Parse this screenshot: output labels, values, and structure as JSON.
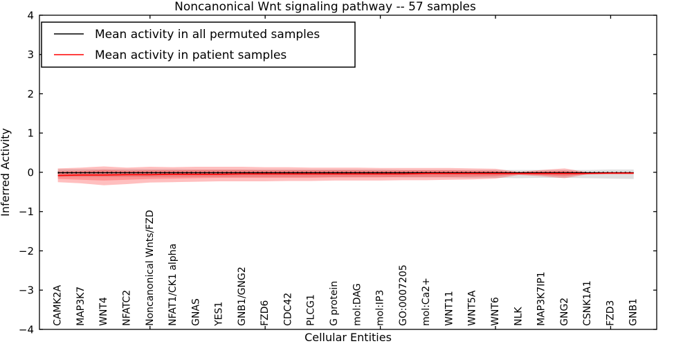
{
  "figure": {
    "title": "Noncanonical Wnt signaling pathway -- 57 samples",
    "xlabel": "Cellular Entities",
    "ylabel": "Inferred Activity"
  },
  "legend": {
    "entries": [
      {
        "label": "Mean activity in all permuted samples",
        "color": "#000000"
      },
      {
        "label": "Mean activity in patient samples",
        "color": "#ff0000"
      }
    ]
  },
  "chart_data": {
    "type": "line",
    "title": "Noncanonical Wnt signaling pathway -- 57 samples",
    "xlabel": "Cellular Entities",
    "ylabel": "Inferred Activity",
    "grid": false,
    "legend_position": "upper left",
    "ylim": [
      -4,
      4
    ],
    "xlim": [
      0.2,
      27.0
    ],
    "y_ticks": [
      4,
      3,
      2,
      1,
      0,
      -1,
      -2,
      -3,
      -4
    ],
    "y_tick_labels": [
      "4",
      "3",
      "2",
      "1",
      "0",
      "−1",
      "−2",
      "−3",
      "−4"
    ],
    "x_major_ticks": [
      5,
      10,
      15,
      20,
      25
    ],
    "x": [
      1,
      2,
      3,
      4,
      5,
      6,
      7,
      8,
      9,
      10,
      11,
      12,
      13,
      14,
      15,
      16,
      17,
      18,
      19,
      20,
      21,
      22,
      23,
      24,
      25,
      26
    ],
    "categories": [
      "CAMK2A",
      "MAP3K7",
      "WNT4",
      "NFATC2",
      "Noncanonical Wnts/FZD",
      "NFAT1/CK1 alpha",
      "GNAS",
      "YES1",
      "GNB1/GNG2",
      "FZD6",
      "CDC42",
      "PLCG1",
      "G protein",
      "mol:DAG",
      "mol:IP3",
      "GO:0007205",
      "mol:Ca2+",
      "WNT11",
      "WNT5A",
      "WNT6",
      "NLK",
      "MAP3K7IP1",
      "GNG2",
      "CSNK1A1",
      "FZD3",
      "GNB1"
    ],
    "series": [
      {
        "name": "Mean activity in all permuted samples",
        "color": "#000000",
        "line_style": "solid-with-dot-markers",
        "values": [
          -0.01,
          -0.01,
          -0.01,
          -0.01,
          -0.01,
          -0.01,
          -0.01,
          -0.01,
          -0.01,
          -0.01,
          -0.01,
          -0.01,
          -0.01,
          -0.01,
          -0.01,
          -0.01,
          -0.01,
          -0.01,
          -0.01,
          -0.01,
          -0.01,
          -0.01,
          -0.01,
          -0.01,
          -0.01,
          -0.01
        ]
      },
      {
        "name": "Mean activity in patient samples",
        "color": "#ff0000",
        "line_style": "solid",
        "values": [
          -0.08,
          -0.07,
          -0.07,
          -0.06,
          -0.06,
          -0.05,
          -0.05,
          -0.05,
          -0.04,
          -0.04,
          -0.04,
          -0.04,
          -0.04,
          -0.04,
          -0.04,
          -0.04,
          -0.03,
          -0.03,
          -0.03,
          -0.03,
          -0.03,
          -0.03,
          -0.03,
          -0.03,
          -0.02,
          -0.02
        ]
      }
    ],
    "bands": [
      {
        "name": "permuted-samples-spread",
        "color": "#808080",
        "opacity": 0.25,
        "upper": [
          0.08,
          0.08,
          0.08,
          0.08,
          0.08,
          0.08,
          0.07,
          0.07,
          0.07,
          0.07,
          0.07,
          0.07,
          0.07,
          0.07,
          0.07,
          0.06,
          0.06,
          0.06,
          0.06,
          0.06,
          0.06,
          0.06,
          0.06,
          0.06,
          0.07,
          0.07
        ],
        "lower": [
          -0.12,
          -0.12,
          -0.12,
          -0.12,
          -0.12,
          -0.12,
          -0.12,
          -0.12,
          -0.12,
          -0.12,
          -0.12,
          -0.12,
          -0.12,
          -0.12,
          -0.12,
          -0.13,
          -0.13,
          -0.13,
          -0.14,
          -0.14,
          -0.15,
          -0.14,
          -0.14,
          -0.15,
          -0.16,
          -0.17
        ]
      },
      {
        "name": "patient-samples-spread-outer",
        "color": "#ff0000",
        "opacity": 0.25,
        "upper": [
          0.1,
          0.12,
          0.15,
          0.12,
          0.14,
          0.13,
          0.14,
          0.14,
          0.14,
          0.13,
          0.13,
          0.12,
          0.12,
          0.12,
          0.11,
          0.11,
          0.11,
          0.11,
          0.1,
          0.09,
          0.01,
          0.06,
          0.1,
          0.0,
          0.0,
          0.0
        ],
        "lower": [
          -0.25,
          -0.28,
          -0.33,
          -0.3,
          -0.26,
          -0.25,
          -0.24,
          -0.23,
          -0.23,
          -0.23,
          -0.22,
          -0.22,
          -0.21,
          -0.21,
          -0.21,
          -0.2,
          -0.2,
          -0.19,
          -0.18,
          -0.16,
          -0.07,
          -0.1,
          -0.15,
          -0.05,
          -0.05,
          -0.05
        ]
      },
      {
        "name": "patient-samples-spread-inner",
        "color": "#ff0000",
        "opacity": 0.22,
        "upper": [
          0.02,
          0.03,
          0.06,
          0.04,
          0.05,
          0.05,
          0.06,
          0.06,
          0.06,
          0.05,
          0.05,
          0.05,
          0.05,
          0.05,
          0.04,
          0.05,
          0.05,
          0.05,
          0.04,
          0.04,
          -0.01,
          0.02,
          0.04,
          -0.01,
          -0.01,
          -0.01
        ],
        "lower": [
          -0.17,
          -0.19,
          -0.21,
          -0.19,
          -0.17,
          -0.16,
          -0.15,
          -0.14,
          -0.14,
          -0.14,
          -0.14,
          -0.14,
          -0.13,
          -0.13,
          -0.13,
          -0.12,
          -0.12,
          -0.12,
          -0.11,
          -0.1,
          -0.05,
          -0.07,
          -0.1,
          -0.04,
          -0.04,
          -0.04
        ]
      }
    ]
  }
}
